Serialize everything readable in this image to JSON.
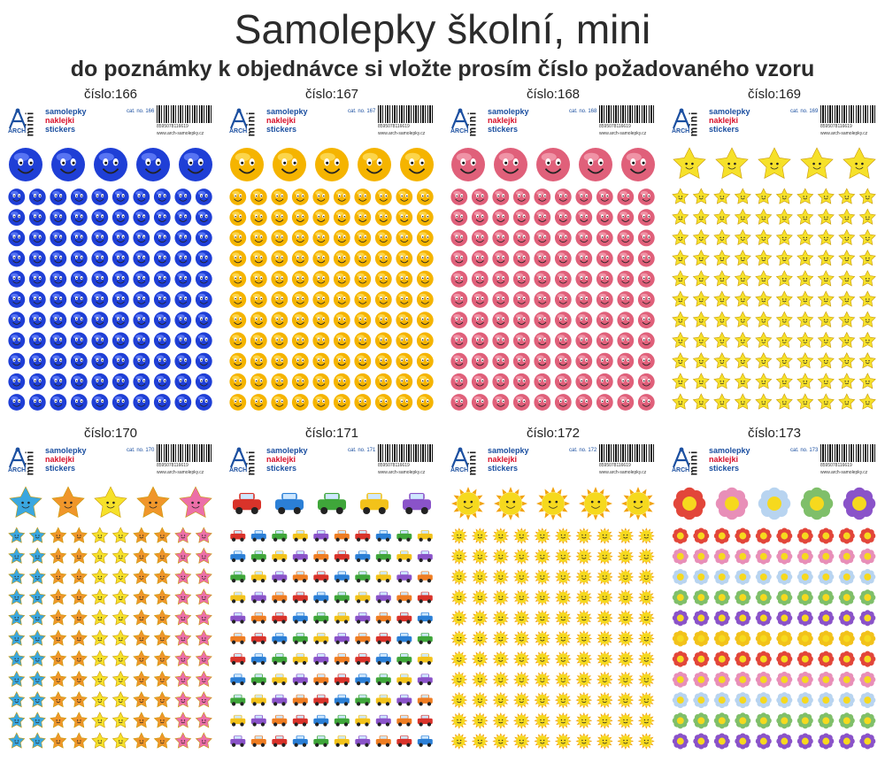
{
  "page": {
    "title": "Samolepky školní, mini",
    "subtitle": "do poznámky k objednávce si vložte prosím číslo požadovaného vzoru"
  },
  "sheet_header": {
    "brand_logo": "ARCH",
    "mini_label": "mini",
    "line1": "samolepky",
    "line2": "naklejki",
    "line3": "stickers",
    "barcode_number": "8595078116619",
    "url": "www.arch-samolepky.cz"
  },
  "panels": [
    {
      "label": "číslo:166",
      "cat": "cat. no. 166",
      "kind": "face",
      "colors": [
        "#1f3fd6"
      ],
      "accent": "#6f8cff"
    },
    {
      "label": "číslo:167",
      "cat": "cat. no. 167",
      "kind": "face",
      "colors": [
        "#f5b400"
      ],
      "accent": "#ffe26a"
    },
    {
      "label": "číslo:168",
      "cat": "cat. no. 168",
      "kind": "face",
      "colors": [
        "#e0607a"
      ],
      "accent": "#f7a9b9"
    },
    {
      "label": "číslo:169",
      "cat": "cat. no. 169",
      "kind": "star",
      "colors": [
        "#f6e12a"
      ],
      "accent": "#fff37c"
    },
    {
      "label": "číslo:170",
      "cat": "cat. no. 170",
      "kind": "star",
      "colors": [
        "#3aa7e0",
        "#f0962a",
        "#f6e12a",
        "#f0962a",
        "#ec6fa8"
      ],
      "accent": "#ffffff"
    },
    {
      "label": "číslo:171",
      "cat": "cat. no. 171",
      "kind": "car",
      "colors": [
        "#d9332a",
        "#2b7fd6",
        "#3fa63a",
        "#f2c21a",
        "#8a53c9",
        "#ef7d22"
      ],
      "accent": "#ffffff"
    },
    {
      "label": "číslo:172",
      "cat": "cat. no. 172",
      "kind": "sun",
      "colors": [
        "#f6d91e"
      ],
      "accent": "#f2a30f"
    },
    {
      "label": "číslo:173",
      "cat": "cat. no. 173",
      "kind": "flower",
      "colors": [
        "#e2463a",
        "#e88fb8",
        "#b8d4f0",
        "#7fbf6a",
        "#8a53c9",
        "#f2c21a"
      ],
      "accent": "#f6d91e"
    }
  ]
}
